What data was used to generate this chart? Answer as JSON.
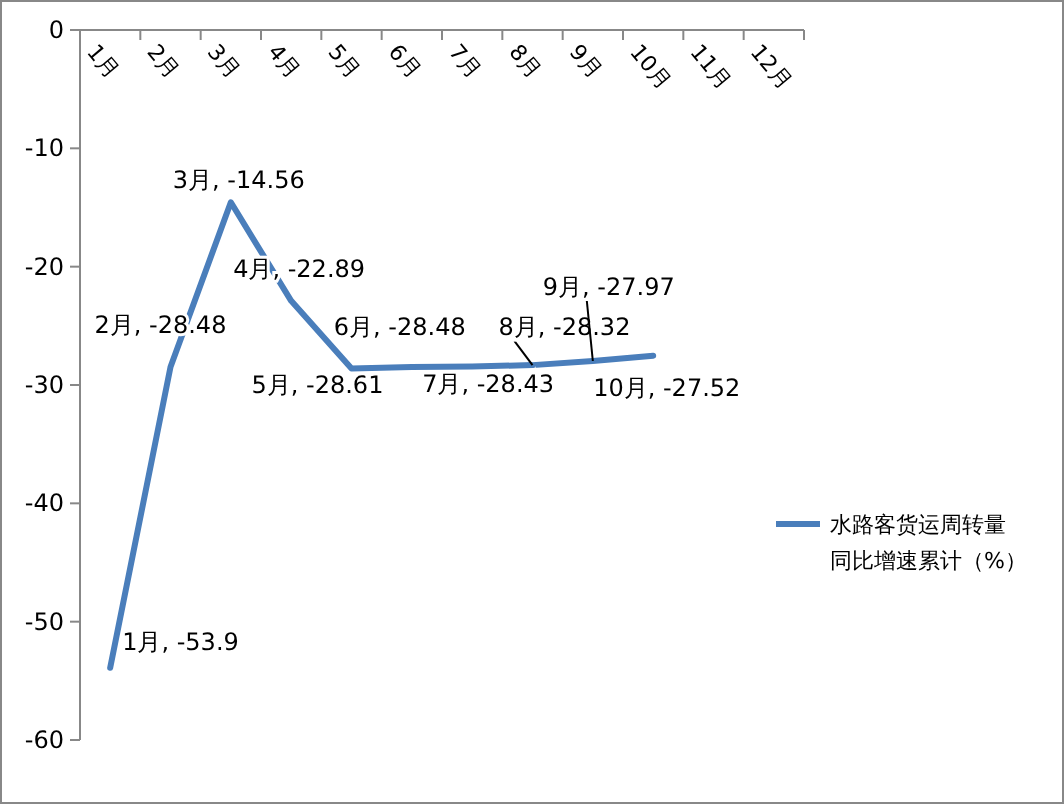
{
  "chart_data": {
    "type": "line",
    "categories": [
      "1月",
      "2月",
      "3月",
      "4月",
      "5月",
      "6月",
      "7月",
      "8月",
      "9月",
      "10月",
      "11月",
      "12月"
    ],
    "series": [
      {
        "name": "水路客货运周转量同比增速累计（%）",
        "color": "#4a7ebb",
        "values": [
          -53.9,
          -28.48,
          -14.56,
          -22.89,
          -28.61,
          -28.48,
          -28.43,
          -28.32,
          -27.97,
          -27.52,
          null,
          null
        ],
        "value_labels": [
          "1月, -53.9",
          "2月, -28.48",
          "3月, -14.56",
          "4月, -22.89",
          "5月, -28.61",
          "6月, -28.48",
          "7月, -28.43",
          "8月, -28.32",
          "9月, -27.97",
          "10月, -27.52",
          null,
          null
        ]
      }
    ],
    "ylim": [
      -60,
      0
    ],
    "yticks": [
      0,
      -10,
      -20,
      -30,
      -40,
      -50,
      -60
    ],
    "legend": "right",
    "grid": false,
    "marker": "none"
  }
}
